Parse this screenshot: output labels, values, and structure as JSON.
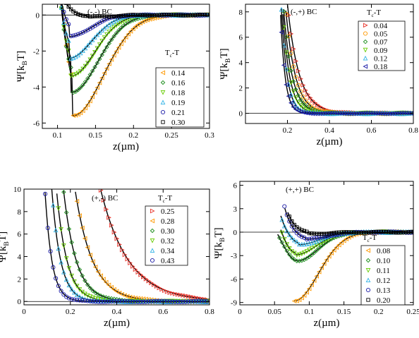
{
  "colors": {
    "c1": "#ff9900",
    "c2": "#1a8c1a",
    "c3": "#66cc00",
    "c4": "#33b3e6",
    "c5": "#1a1aa6",
    "c6": "#000000",
    "red": "#e8332a",
    "fit": "#000000"
  },
  "chart_data": [
    {
      "type": "scatter",
      "panel_label": "(-,-) BC",
      "xlabel": "z(µm)",
      "ylabel": "Ψ[k",
      "ylabel_sub": "B",
      "ylabel_tail": "T]",
      "xlim": [
        0.08,
        0.3
      ],
      "ylim": [
        -6.3,
        0.6
      ],
      "xticks": [
        {
          "v": 0.1,
          "label": "0.1"
        },
        {
          "v": 0.15,
          "label": "0.15"
        },
        {
          "v": 0.2,
          "label": "0.2"
        },
        {
          "v": 0.25,
          "label": "0.25"
        },
        {
          "v": 0.3,
          "label": "0.3"
        }
      ],
      "yticks": [
        {
          "v": -6,
          "label": "-6"
        },
        {
          "v": -4,
          "label": "-4"
        },
        {
          "v": -2,
          "label": "-2"
        },
        {
          "v": 0,
          "label": "0"
        }
      ],
      "legend_title": "T",
      "legend_title_sub": "c",
      "legend_title_tail": "-T",
      "legend_position": "right",
      "series": [
        {
          "name": "0.14",
          "marker": "tri-left",
          "color": "c1",
          "fit": {
            "type": "well",
            "z0": 0.1,
            "y0": 8,
            "zmin": 0.12,
            "ymin": -5.6,
            "width": 0.04
          }
        },
        {
          "name": "0.16",
          "marker": "diamond",
          "color": "c2",
          "fit": {
            "type": "well",
            "z0": 0.1,
            "y0": 6,
            "zmin": 0.118,
            "ymin": -4.3,
            "width": 0.035
          }
        },
        {
          "name": "0.18",
          "marker": "tri-down",
          "color": "c3",
          "fit": {
            "type": "well",
            "z0": 0.1,
            "y0": 5,
            "zmin": 0.117,
            "ymin": -3.4,
            "width": 0.032
          }
        },
        {
          "name": "0.19",
          "marker": "tri-up",
          "color": "c4",
          "fit": {
            "type": "well",
            "z0": 0.1,
            "y0": 4,
            "zmin": 0.115,
            "ymin": -2.4,
            "width": 0.03
          }
        },
        {
          "name": "0.21",
          "marker": "circle",
          "color": "c5",
          "fit": {
            "type": "well",
            "z0": 0.1,
            "y0": 3,
            "zmin": 0.115,
            "ymin": -1.2,
            "width": 0.028
          }
        },
        {
          "name": "0.30",
          "marker": "square",
          "color": "c6",
          "fit": {
            "type": "well",
            "z0": 0.1,
            "y0": 2,
            "zmin": 0.14,
            "ymin": -0.1,
            "width": 0.03
          }
        }
      ]
    },
    {
      "type": "scatter",
      "panel_label": "(-,+) BC",
      "xlabel": "z(µm)",
      "ylabel": "Ψ[k",
      "ylabel_sub": "B",
      "ylabel_tail": "T]",
      "xlim": [
        0.0,
        0.8
      ],
      "ylim": [
        -0.8,
        8.6
      ],
      "xticks": [
        {
          "v": 0.2,
          "label": "0.2"
        },
        {
          "v": 0.4,
          "label": "0.4"
        },
        {
          "v": 0.6,
          "label": "0.6"
        },
        {
          "v": 0.8,
          "label": "0.8"
        }
      ],
      "yticks": [
        {
          "v": 0,
          "label": "0"
        },
        {
          "v": 2,
          "label": "2"
        },
        {
          "v": 4,
          "label": "4"
        },
        {
          "v": 6,
          "label": "6"
        },
        {
          "v": 8,
          "label": "8"
        }
      ],
      "legend_title": "T",
      "legend_title_sub": "c",
      "legend_title_tail": "-T",
      "legend_position": "top-right",
      "series": [
        {
          "name": "0.04",
          "marker": "tri-right",
          "color": "red",
          "fit": {
            "type": "decay",
            "z0": 0.2,
            "y0": 8.6,
            "len": 0.055
          }
        },
        {
          "name": "0.05",
          "marker": "circle",
          "color": "c1",
          "fit": {
            "type": "decay",
            "z0": 0.19,
            "y0": 8.6,
            "len": 0.045
          }
        },
        {
          "name": "0.07",
          "marker": "diamond",
          "color": "c2",
          "fit": {
            "type": "decay",
            "z0": 0.18,
            "y0": 8.6,
            "len": 0.04
          }
        },
        {
          "name": "0.09",
          "marker": "tri-down",
          "color": "c3",
          "fit": {
            "type": "decay",
            "z0": 0.175,
            "y0": 8.6,
            "len": 0.033
          }
        },
        {
          "name": "0.12",
          "marker": "tri-up",
          "color": "c4",
          "fit": {
            "type": "decay",
            "z0": 0.17,
            "y0": 8.6,
            "len": 0.027
          }
        },
        {
          "name": "0.18",
          "marker": "tri-left",
          "color": "c5",
          "fit": {
            "type": "decay",
            "z0": 0.165,
            "y0": 8.6,
            "len": 0.022
          }
        }
      ]
    },
    {
      "type": "scatter",
      "panel_label": "(+,-) BC",
      "xlabel": "z(µm)",
      "ylabel": "Ψ[k",
      "ylabel_sub": "B",
      "ylabel_tail": "T]",
      "xlim": [
        0.0,
        0.8
      ],
      "ylim": [
        -0.3,
        10.0
      ],
      "xticks": [
        {
          "v": 0,
          "label": "0"
        },
        {
          "v": 0.2,
          "label": "0.2"
        },
        {
          "v": 0.4,
          "label": "0.4"
        },
        {
          "v": 0.6,
          "label": "0.6"
        },
        {
          "v": 0.8,
          "label": "0.8"
        }
      ],
      "yticks": [
        {
          "v": 0,
          "label": "0"
        },
        {
          "v": 2,
          "label": "2"
        },
        {
          "v": 4,
          "label": "4"
        },
        {
          "v": 6,
          "label": "6"
        },
        {
          "v": 8,
          "label": "8"
        },
        {
          "v": 10,
          "label": "10"
        }
      ],
      "legend_title": "T",
      "legend_title_sub": "c",
      "legend_title_tail": "-T",
      "legend_position": "top-right",
      "series": [
        {
          "name": "0.25",
          "marker": "tri-right",
          "color": "red",
          "fit": {
            "type": "decay",
            "z0": 0.33,
            "y0": 10,
            "len": 0.12
          }
        },
        {
          "name": "0.28",
          "marker": "tri-left",
          "color": "c1",
          "fit": {
            "type": "decay",
            "z0": 0.22,
            "y0": 10,
            "len": 0.075
          }
        },
        {
          "name": "0.30",
          "marker": "diamond",
          "color": "c2",
          "fit": {
            "type": "decay",
            "z0": 0.17,
            "y0": 10,
            "len": 0.055
          }
        },
        {
          "name": "0.32",
          "marker": "tri-down",
          "color": "c3",
          "fit": {
            "type": "decay",
            "z0": 0.14,
            "y0": 10,
            "len": 0.045
          }
        },
        {
          "name": "0.34",
          "marker": "tri-up",
          "color": "c4",
          "fit": {
            "type": "decay",
            "z0": 0.12,
            "y0": 10,
            "len": 0.038
          }
        },
        {
          "name": "0.43",
          "marker": "circle",
          "color": "c5",
          "fit": {
            "type": "decay",
            "z0": 0.09,
            "y0": 10,
            "len": 0.03
          }
        }
      ]
    },
    {
      "type": "scatter",
      "panel_label": "(+,+) BC",
      "xlabel": "z(µm)",
      "ylabel": "Ψ[k",
      "ylabel_sub": "B",
      "ylabel_tail": "T]",
      "xlim": [
        0.0,
        0.25
      ],
      "ylim": [
        -9.3,
        6.5
      ],
      "xticks": [
        {
          "v": 0,
          "label": "0"
        },
        {
          "v": 0.05,
          "label": "0.05"
        },
        {
          "v": 0.1,
          "label": "0.1"
        },
        {
          "v": 0.15,
          "label": "0.15"
        },
        {
          "v": 0.2,
          "label": "0.2"
        },
        {
          "v": 0.25,
          "label": "0.25"
        }
      ],
      "yticks": [
        {
          "v": -9,
          "label": "-9"
        },
        {
          "v": -6,
          "label": "-6"
        },
        {
          "v": -3,
          "label": "-3"
        },
        {
          "v": 0,
          "label": "0"
        },
        {
          "v": 3,
          "label": "3"
        },
        {
          "v": 6,
          "label": "6"
        }
      ],
      "legend_title": "T",
      "legend_title_sub": "c",
      "legend_title_tail": "-T",
      "legend_position": "bottom-right",
      "series": [
        {
          "name": "0.08",
          "marker": "tri-left",
          "color": "c1",
          "fit": {
            "type": "well",
            "z0": 0.078,
            "y0": -8.8,
            "zmin": 0.078,
            "ymin": -8.8,
            "width": 0.035,
            "startAtMin": true
          }
        },
        {
          "name": "0.10",
          "marker": "diamond",
          "color": "c2",
          "fit": {
            "type": "well",
            "z0": 0.06,
            "y0": 0.5,
            "zmin": 0.082,
            "ymin": -3.7,
            "width": 0.03
          }
        },
        {
          "name": "0.11",
          "marker": "tri-down",
          "color": "c3",
          "fit": {
            "type": "well",
            "z0": 0.065,
            "y0": 1.0,
            "zmin": 0.08,
            "ymin": -2.9,
            "width": 0.03
          }
        },
        {
          "name": "0.12",
          "marker": "tri-up",
          "color": "c4",
          "fit": {
            "type": "well",
            "z0": 0.065,
            "y0": 1.5,
            "zmin": 0.085,
            "ymin": -1.6,
            "width": 0.03
          }
        },
        {
          "name": "0.13",
          "marker": "circle",
          "color": "c5",
          "fit": {
            "type": "well",
            "z0": 0.07,
            "y0": 2.0,
            "zmin": 0.095,
            "ymin": -0.9,
            "width": 0.03
          }
        },
        {
          "name": "0.20",
          "marker": "square",
          "color": "c6",
          "fit": {
            "type": "well",
            "z0": 0.075,
            "y0": 1.5,
            "zmin": 0.1,
            "ymin": -0.2,
            "width": 0.03
          }
        }
      ]
    }
  ]
}
